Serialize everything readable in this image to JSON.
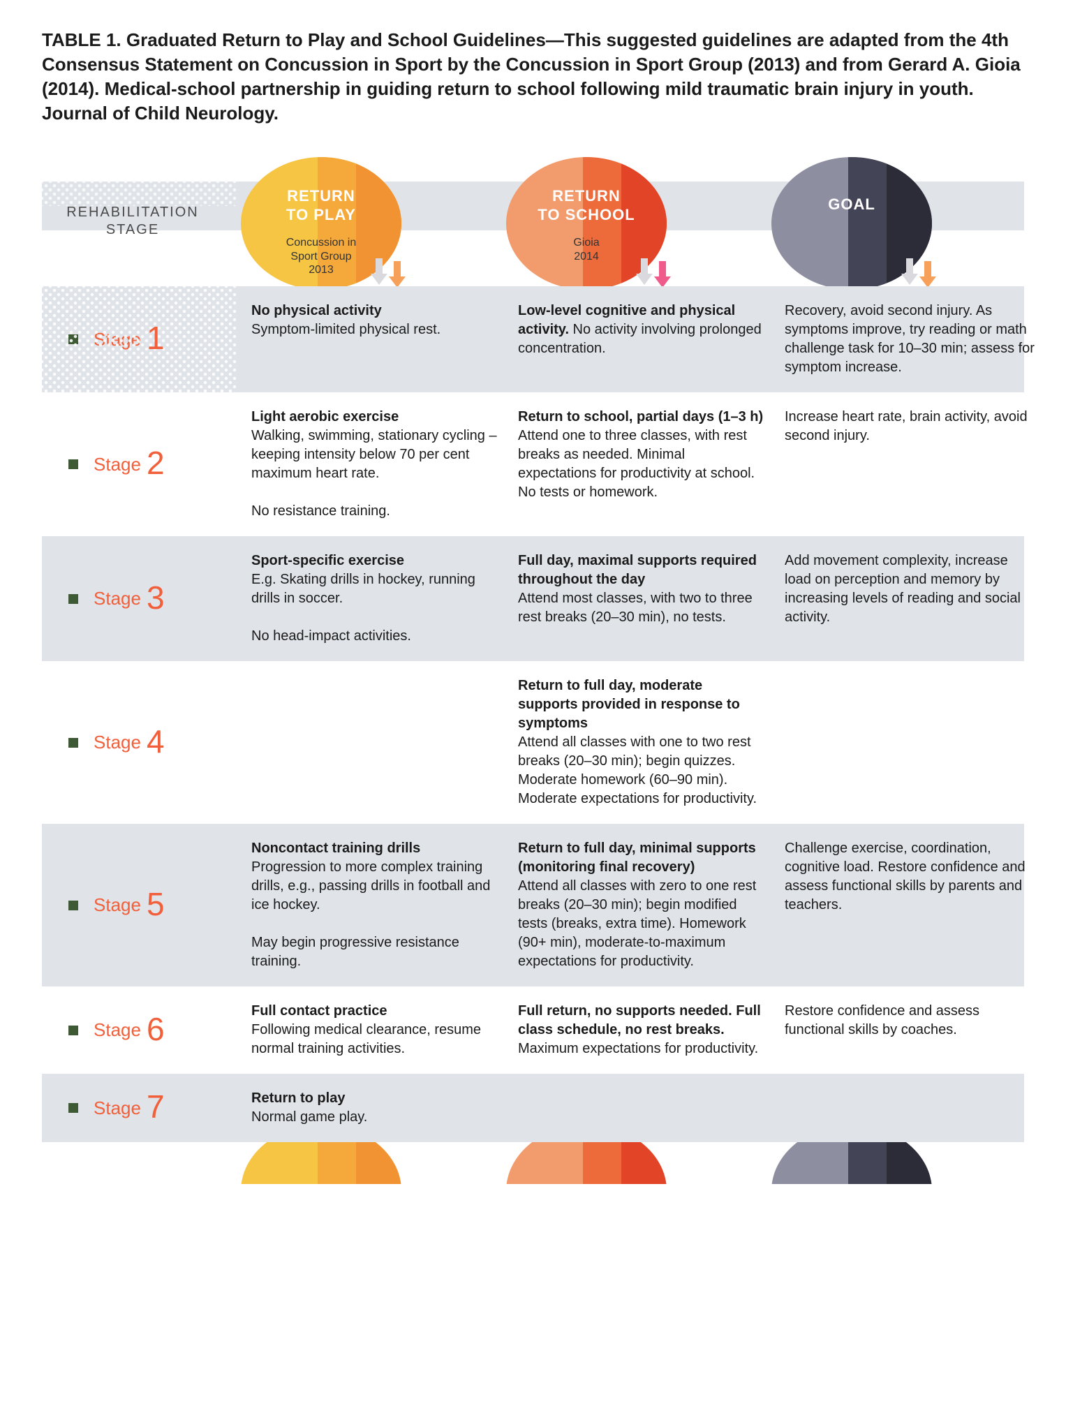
{
  "title": "TABLE 1. Graduated Return to Play and School Guidelines—This suggested guidelines are adapted from the 4th Consensus Statement on Concussion in Sport by the Concussion in Sport Group (2013) and from Gerard A. Gioia (2014). Medical-school partnership in guiding return to school following mild traumatic brain injury in youth. Journal of Child Neurology.",
  "columns": {
    "stage_label": "REHABILITATION\nSTAGE",
    "play": {
      "title": "RETURN\nTO PLAY",
      "sub": "Concussion in\nSport Group\n2013",
      "colors": [
        "#f6c544",
        "#f4a93a",
        "#f19233"
      ]
    },
    "school": {
      "title": "RETURN\nTO SCHOOL",
      "sub": "Gioia\n2014",
      "colors": [
        "#f29b6c",
        "#ed6a3a",
        "#e24427"
      ]
    },
    "goal": {
      "title": "GOAL",
      "sub": "",
      "colors": [
        "#8d8ea0",
        "#434556",
        "#2b2c38"
      ]
    }
  },
  "arrow_colors": {
    "light": "#d9d9de",
    "orange": "#f6a05a",
    "pink": "#ef5b8a"
  },
  "stage_word": "Stage",
  "stage_color": "#f1603b",
  "square_color": "#3e5a34",
  "row_alt_bg": "#e0e4e8",
  "rows": [
    {
      "num": "1",
      "alt": true,
      "dots": true,
      "play_b": "No physical activity",
      "play_t": "Symptom-limited physical rest.",
      "school_b": "Low-level cognitive and physical activity.",
      "school_t": " No activity involving prolonged concentration.",
      "goal_t": "Recovery, avoid second injury. As symptoms improve, try reading or math challenge task for 10–30 min; assess for symptom increase."
    },
    {
      "num": "2",
      "alt": false,
      "play_b": "Light aerobic exercise",
      "play_t": "Walking, swimming, stationary cycling – keeping intensity below 70 per cent maximum heart rate.\n\nNo resistance training.",
      "school_b": "Return to school, partial days (1–3 h)",
      "school_t": "Attend one to three classes, with rest breaks as needed. Minimal expectations for productivity at school. No tests or homework.",
      "goal_t": "Increase heart rate, brain activity, avoid second injury."
    },
    {
      "num": "3",
      "alt": true,
      "play_b": "Sport-specific exercise",
      "play_t": "E.g. Skating drills in hockey, running drills in soccer.\n\nNo head-impact activities.",
      "school_b": "Full day, maximal supports required throughout the day",
      "school_t": "Attend most classes, with two to three rest breaks (20–30 min), no tests.",
      "goal_t": "Add movement complexity, increase load on perception and memory by increasing levels of reading and social activity."
    },
    {
      "num": "4",
      "alt": false,
      "play_b": "",
      "play_t": "",
      "school_b": "Return to full day, moderate supports provided in response to symptoms",
      "school_t": "Attend all classes with one to two rest breaks (20–30 min); begin quizzes. Moderate homework (60–90 min). Moderate expectations for productivity.",
      "goal_t": ""
    },
    {
      "num": "5",
      "alt": true,
      "play_b": "Noncontact training drills",
      "play_t": "Progression to more complex training drills, e.g., passing drills in football and ice hockey.\n\nMay begin progressive resistance training.",
      "school_b": "Return to full day, minimal supports (monitoring final recovery)",
      "school_t": "Attend all classes with zero to one rest breaks (20–30 min); begin modified tests (breaks, extra time). Homework (90+ min), moderate-to-maximum expectations for productivity.",
      "goal_t": "Challenge exercise, coordination, cognitive load. Restore confidence and assess functional skills by parents and teachers."
    },
    {
      "num": "6",
      "alt": false,
      "play_b": "Full contact practice",
      "play_t": "Following medical clearance, resume normal training activities.",
      "school_b": "Full return, no supports needed. Full class schedule, no rest breaks.",
      "school_t": "Maximum expectations for productivity.",
      "goal_t": "Restore confidence and assess functional skills by coaches."
    },
    {
      "num": "7",
      "alt": true,
      "play_b": "Return to play",
      "play_t": "Normal game play.",
      "school_b": "",
      "school_t": "",
      "goal_t": ""
    }
  ]
}
